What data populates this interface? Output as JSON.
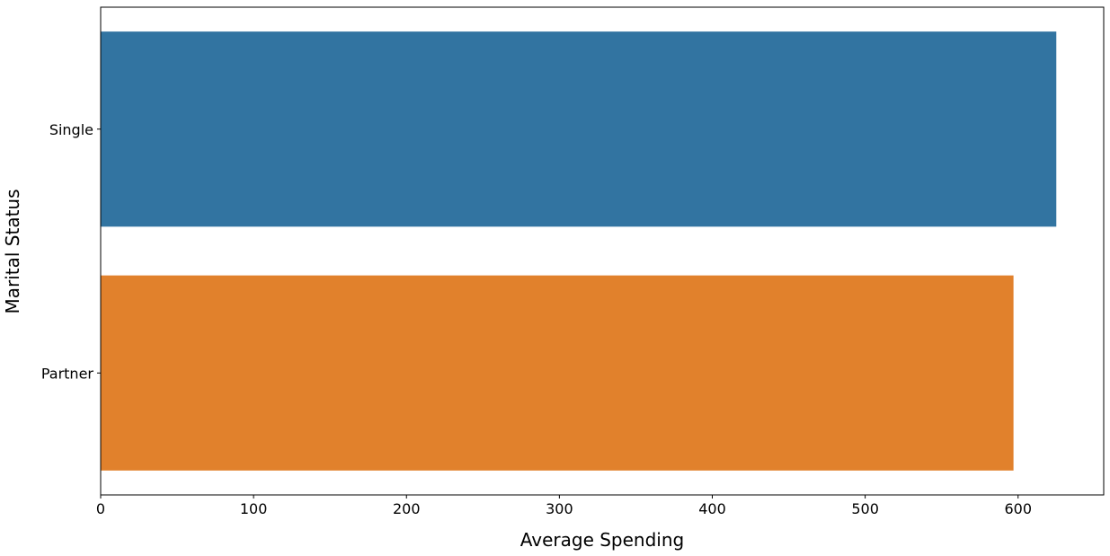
{
  "chart_data": {
    "type": "bar",
    "orientation": "horizontal",
    "title": "",
    "xlabel": "Average Spending",
    "ylabel": "Marital Status",
    "categories": [
      "Single",
      "Partner"
    ],
    "values": [
      625,
      597
    ],
    "colors": [
      "#3274a1",
      "#e1812c"
    ],
    "xlim": [
      0,
      656
    ],
    "xticks": [
      0,
      100,
      200,
      300,
      400,
      500,
      600
    ],
    "grid": false,
    "legend": "none"
  }
}
